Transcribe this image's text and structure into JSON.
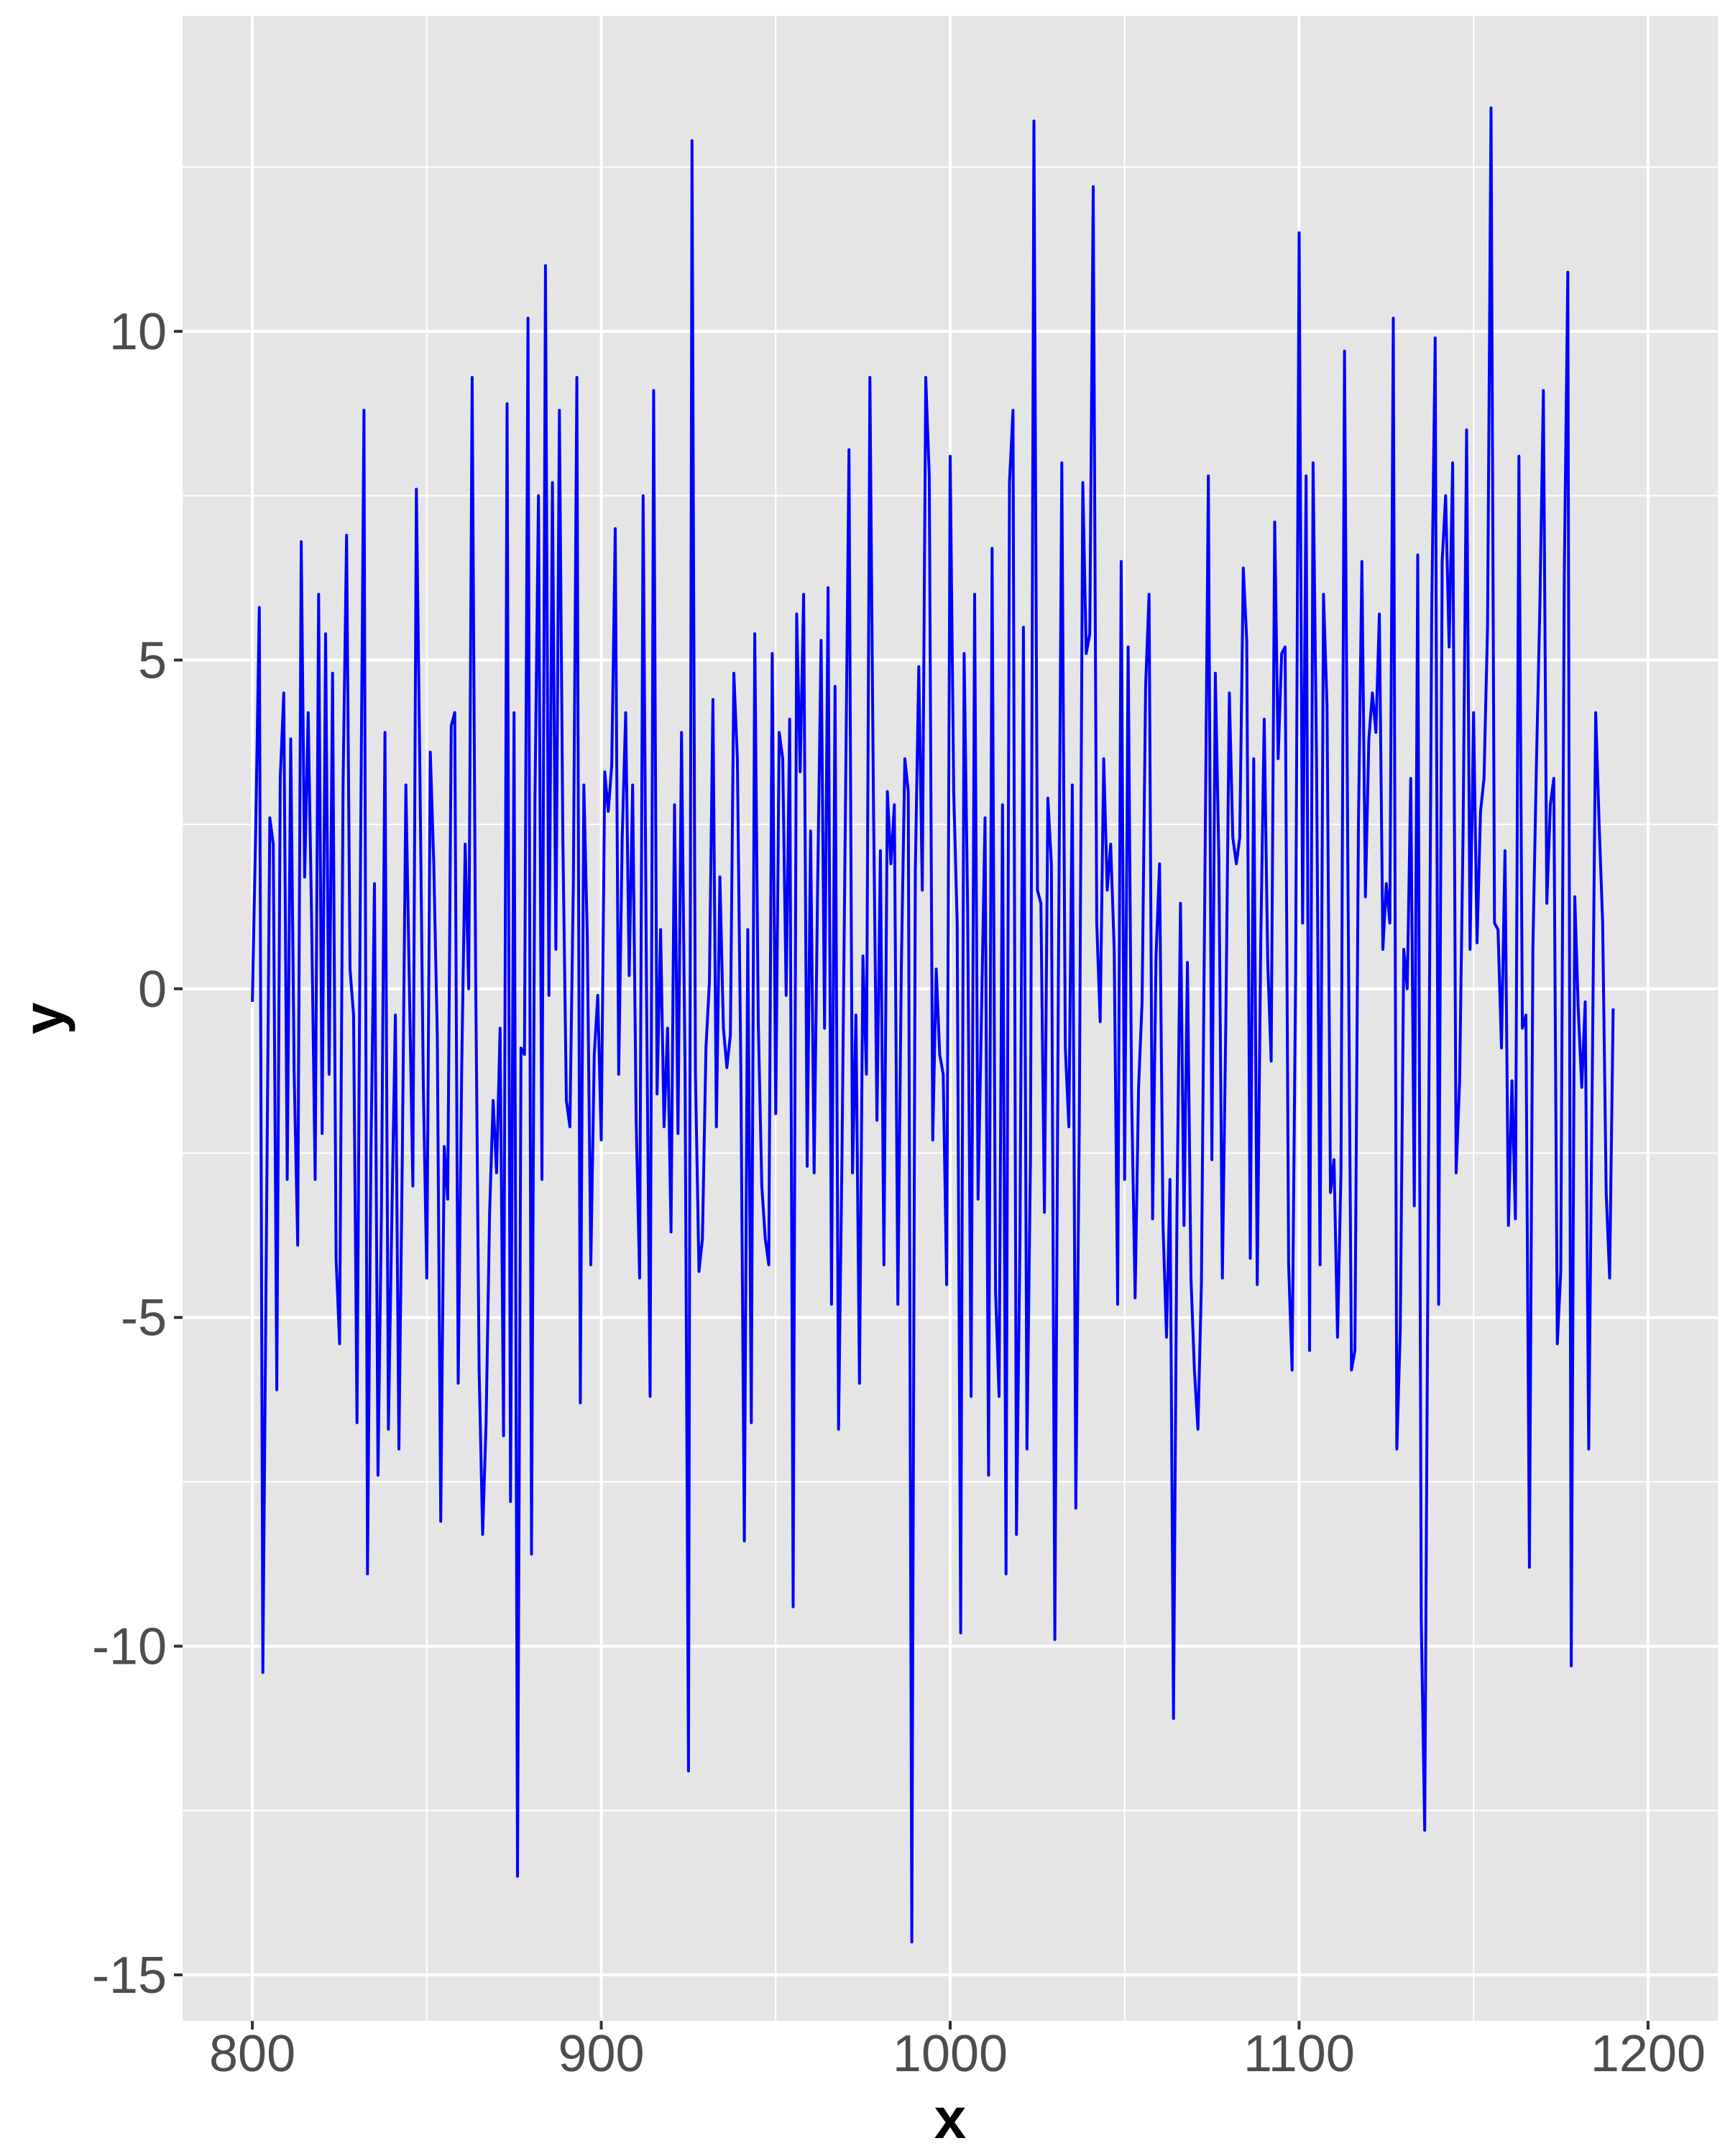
{
  "chart_data": {
    "type": "line",
    "title": "",
    "xlabel": "x",
    "ylabel": "y",
    "xlim": [
      780,
      1220
    ],
    "ylim": [
      -15.7,
      14.8
    ],
    "x_ticks": [
      800,
      900,
      1000,
      1100,
      1200
    ],
    "y_ticks": [
      -15,
      -10,
      -5,
      0,
      5,
      10
    ],
    "x_tick_labels": [
      "800",
      "900",
      "1000",
      "1100",
      "1200"
    ],
    "y_tick_labels": [
      "-15",
      "-10",
      "-5",
      "0",
      "5",
      "10"
    ],
    "grid": true,
    "legend": "none",
    "series": [
      {
        "name": "y",
        "color": "#0000ff",
        "x_start": 800,
        "x_step": 1,
        "values": [
          -0.2,
          2.5,
          5.8,
          -10.4,
          -4.0,
          2.6,
          2.2,
          -6.1,
          3.2,
          4.5,
          -2.9,
          3.8,
          -1.3,
          -3.9,
          6.8,
          1.7,
          4.2,
          1.0,
          -2.9,
          6.0,
          -2.2,
          5.4,
          -1.3,
          4.8,
          -4.1,
          -5.4,
          3.1,
          6.9,
          0.3,
          -0.4,
          -6.6,
          2.0,
          8.8,
          -8.9,
          -2.5,
          1.6,
          -7.4,
          -3.4,
          3.9,
          -6.7,
          -3.4,
          -0.4,
          -7.0,
          -2.5,
          3.1,
          0.1,
          -3.0,
          7.6,
          3.4,
          -1.5,
          -4.4,
          3.6,
          1.9,
          -0.7,
          -8.1,
          -2.4,
          -3.2,
          4.0,
          4.2,
          -6.0,
          -1.2,
          2.2,
          0.0,
          9.3,
          0.2,
          -5.8,
          -8.3,
          -6.6,
          -3.4,
          -1.7,
          -2.8,
          -0.6,
          -6.8,
          8.9,
          -7.8,
          4.2,
          -13.5,
          -0.9,
          -1.0,
          10.2,
          -8.6,
          2.9,
          7.5,
          -2.9,
          11.0,
          -0.1,
          7.7,
          0.6,
          8.8,
          2.3,
          -1.7,
          -2.1,
          1.6,
          9.3,
          -6.3,
          3.1,
          0.8,
          -4.2,
          -1.0,
          -0.1,
          -2.3,
          3.3,
          2.7,
          3.4,
          7.0,
          -1.3,
          2.3,
          4.2,
          0.2,
          3.1,
          -2.0,
          -4.4,
          7.5,
          -0.3,
          -6.2,
          9.1,
          -1.6,
          0.9,
          -2.1,
          -0.6,
          -3.7,
          2.8,
          -2.2,
          3.9,
          -1.2,
          -11.9,
          12.9,
          -1.3,
          -4.3,
          -3.8,
          -0.9,
          0.1,
          4.4,
          -2.1,
          1.7,
          -0.6,
          -1.2,
          -0.7,
          4.8,
          3.5,
          -1.2,
          -8.4,
          0.9,
          -6.6,
          5.4,
          -0.5,
          -3.0,
          -3.8,
          -4.2,
          5.1,
          -1.9,
          3.9,
          3.5,
          -0.1,
          4.1,
          -9.4,
          5.7,
          3.3,
          6.0,
          -2.7,
          2.4,
          -2.8,
          1.5,
          5.3,
          -0.6,
          6.1,
          -4.8,
          4.6,
          -6.7,
          -2.5,
          2.9,
          8.2,
          -2.8,
          -0.4,
          -6.0,
          0.5,
          -1.3,
          9.3,
          2.9,
          -2.0,
          2.1,
          -4.2,
          3.0,
          1.9,
          2.8,
          -4.8,
          0.3,
          3.5,
          3.0,
          -14.5,
          1.8,
          4.9,
          1.5,
          9.3,
          7.8,
          -2.3,
          0.3,
          -1.0,
          -1.3,
          -4.5,
          8.1,
          3.0,
          1.0,
          -9.8,
          5.1,
          1.2,
          -6.2,
          6.0,
          -3.2,
          -0.3,
          2.6,
          -7.4,
          6.7,
          -4.6,
          -6.2,
          2.8,
          -8.9,
          7.7,
          8.8,
          -8.3,
          -3.8,
          5.5,
          -7.0,
          -2.6,
          13.2,
          1.5,
          1.3,
          -3.4,
          2.9,
          1.9,
          -9.9,
          0.1,
          8.0,
          -0.9,
          -2.1,
          3.1,
          -7.9,
          -2.1,
          7.7,
          5.1,
          5.4,
          12.2,
          1.0,
          -0.5,
          3.5,
          1.5,
          2.2,
          0.6,
          -4.8,
          6.5,
          -2.9,
          5.2,
          -1.6,
          -4.7,
          -1.5,
          -0.2,
          4.6,
          6.0,
          -3.5,
          0.5,
          1.9,
          -3.6,
          -5.3,
          -2.9,
          -11.1,
          -3.4,
          1.3,
          -3.6,
          0.4,
          -4.4,
          -5.8,
          -6.7,
          -4.5,
          1.7,
          7.8,
          -2.6,
          4.8,
          2.0,
          -4.4,
          -0.5,
          4.5,
          2.3,
          1.9,
          2.3,
          6.4,
          5.3,
          -4.1,
          3.5,
          -4.5,
          0.7,
          4.1,
          0.4,
          -1.1,
          7.1,
          3.5,
          5.1,
          5.2,
          -4.2,
          -5.8,
          0.2,
          11.5,
          1.0,
          7.8,
          -5.5,
          8.0,
          3.5,
          -4.2,
          6.0,
          4.3,
          -3.1,
          -2.6,
          -5.3,
          -2.8,
          9.7,
          1.7,
          -5.8,
          -5.5,
          2.5,
          6.5,
          1.4,
          3.8,
          4.5,
          3.9,
          5.7,
          0.6,
          1.6,
          1.0,
          10.2,
          -7.0,
          -5.2,
          0.6,
          0.0,
          3.2,
          -3.3,
          6.6,
          -9.6,
          -12.8,
          -3.4,
          5.7,
          9.9,
          -4.8,
          6.5,
          7.5,
          5.2,
          8.0,
          -2.8,
          -1.4,
          2.4,
          8.5,
          0.6,
          4.2,
          0.7,
          2.7,
          3.2,
          5.5,
          13.4,
          1.0,
          0.9,
          -0.9,
          2.1,
          -3.6,
          -1.4,
          -3.5,
          8.1,
          -0.6,
          -0.4,
          -8.8,
          0.6,
          3.4,
          5.8,
          9.1,
          1.3,
          2.8,
          3.2,
          -5.4,
          -4.3,
          6.3,
          10.9,
          -10.3,
          1.4,
          -0.3,
          -1.5,
          -0.2,
          -7.0,
          -1.5,
          4.2,
          2.5,
          1.0,
          -3.1,
          -4.4,
          -0.3
        ]
      }
    ]
  }
}
